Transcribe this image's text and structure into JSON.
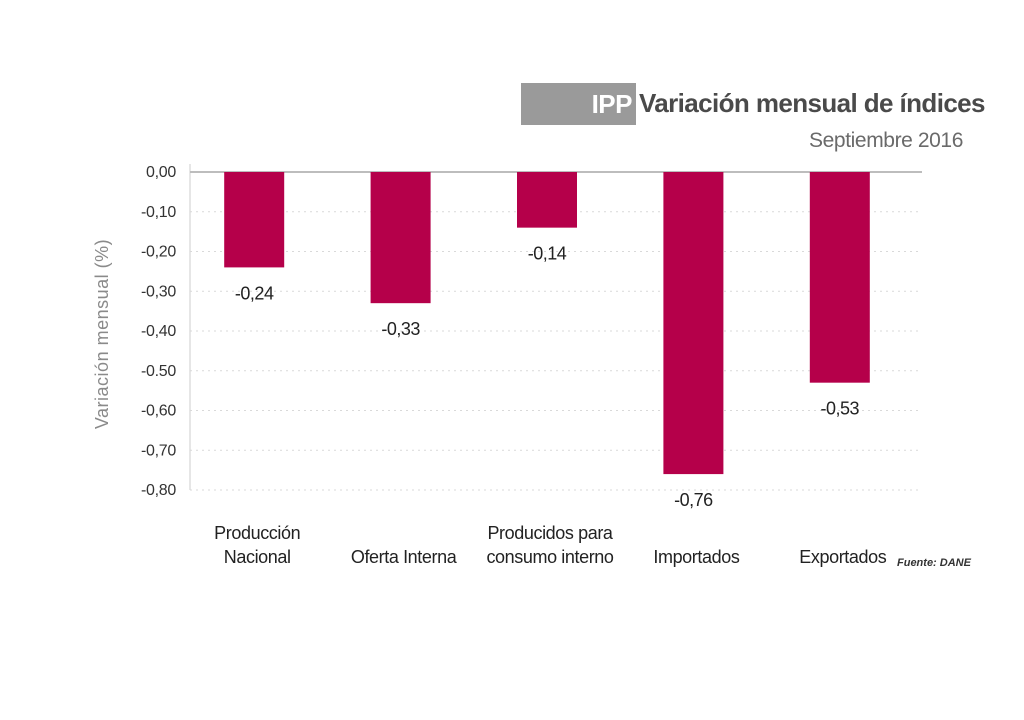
{
  "header": {
    "badge": "IPP",
    "title": "Variación mensual de índices",
    "subtitle": "Septiembre 2016"
  },
  "source": "Fuente: DANE",
  "colors": {
    "bar": "#b5004a",
    "badge": "#9a9a9a",
    "grid": "#d9d9d9"
  },
  "chart_data": {
    "type": "bar",
    "title": "Variación mensual de índices",
    "subtitle": "Septiembre 2016",
    "xlabel": "",
    "ylabel": "Variación mensual (%)",
    "ylim": [
      -0.8,
      0
    ],
    "grid": true,
    "categories": [
      [
        "Producción",
        "Nacional"
      ],
      [
        "Oferta Interna"
      ],
      [
        "Producidos para",
        "consumo interno"
      ],
      [
        "Importados"
      ],
      [
        "Exportados"
      ]
    ],
    "values": [
      -0.24,
      -0.33,
      -0.14,
      -0.76,
      -0.53
    ],
    "data_labels": [
      "-0,24",
      "-0,33",
      "-0,14",
      "-0,76",
      "-0,53"
    ],
    "y_ticks": [
      0,
      -0.1,
      -0.2,
      -0.3,
      -0.4,
      -0.5,
      -0.6,
      -0.7,
      -0.8
    ],
    "y_tick_labels": [
      "0,00",
      "-0,10",
      "-0,20",
      "-0,30",
      "-0,40",
      "-0.50",
      "-0,60",
      "-0,70",
      "-0,80"
    ]
  }
}
